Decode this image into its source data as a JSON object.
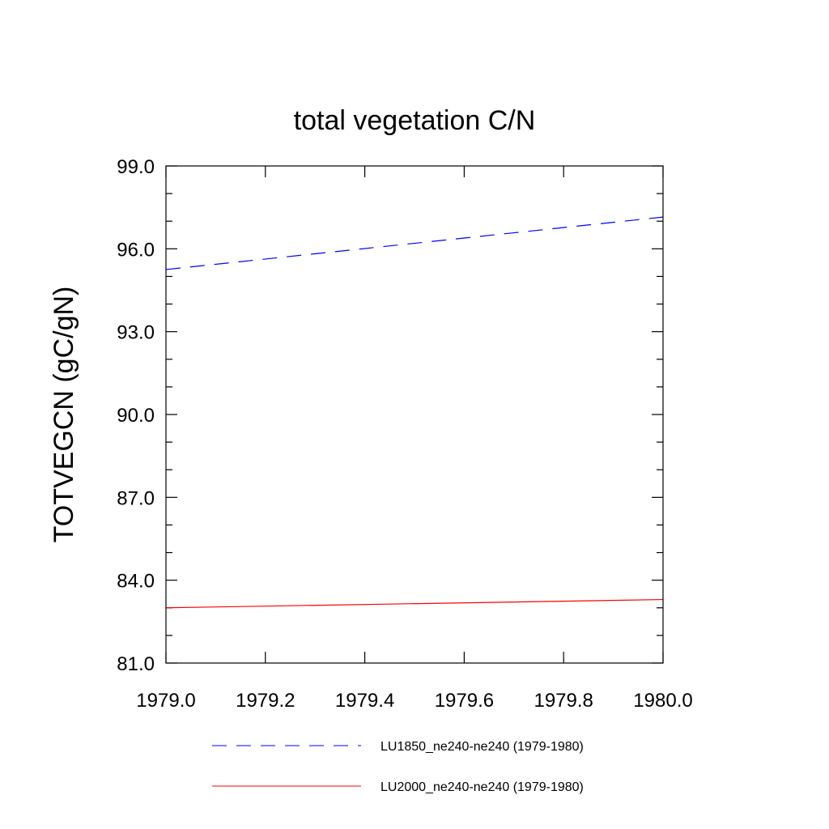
{
  "chart_data": {
    "type": "line",
    "title": "total vegetation C/N",
    "xlabel": "",
    "ylabel": "TOTVEGCN  (gC/gN)",
    "xlim": [
      1979.0,
      1980.0
    ],
    "ylim": [
      81.0,
      99.0
    ],
    "x_ticks": [
      1979.0,
      1979.2,
      1979.4,
      1979.6,
      1979.8,
      1980.0
    ],
    "x_tick_labels": [
      "1979.0",
      "1979.2",
      "1979.4",
      "1979.6",
      "1979.8",
      "1980.0"
    ],
    "y_ticks": [
      81.0,
      84.0,
      87.0,
      90.0,
      93.0,
      96.0,
      99.0
    ],
    "y_tick_labels": [
      "81.0",
      "84.0",
      "87.0",
      "90.0",
      "93.0",
      "96.0",
      "99.0"
    ],
    "x_minor_step": 0.2,
    "y_minor_step": 1.0,
    "grid": false,
    "legend_position": "bottom",
    "series": [
      {
        "name": "LU1850_ne240-ne240 (1979-1980)",
        "color": "#0000ff",
        "style": "dashed",
        "x": [
          1979.0,
          1980.0
        ],
        "values": [
          95.25,
          97.15
        ]
      },
      {
        "name": "LU2000_ne240-ne240 (1979-1980)",
        "color": "#ff0000",
        "style": "solid",
        "x": [
          1979.0,
          1980.0
        ],
        "values": [
          83.0,
          83.3
        ]
      }
    ]
  }
}
